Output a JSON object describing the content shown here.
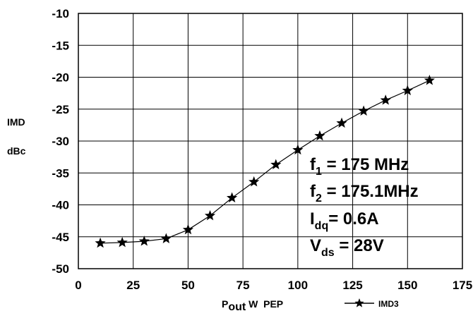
{
  "chart_data": {
    "type": "line",
    "ylabel_line1": "IMD",
    "ylabel_line2": "dBc",
    "xlabel": {
      "main": "P",
      "sub": "out",
      "rest": " W  PEP"
    },
    "xlim": [
      0,
      175
    ],
    "ylim": [
      -50,
      -10
    ],
    "x_ticks": [
      "0",
      "25",
      "50",
      "75",
      "100",
      "125",
      "150",
      "175"
    ],
    "y_ticks": [
      "-10",
      "-15",
      "-20",
      "-25",
      "-30",
      "-35",
      "-40",
      "-45",
      "-50"
    ],
    "grid": true,
    "legend_placement": "bottom-right",
    "series": [
      {
        "name": "IMD3",
        "marker": "star",
        "color": "#000000",
        "x": [
          10,
          20,
          30,
          40,
          50,
          60,
          70,
          80,
          90,
          100,
          110,
          120,
          130,
          140,
          150,
          160
        ],
        "y": [
          -46.0,
          -45.9,
          -45.7,
          -45.3,
          -43.9,
          -41.7,
          -38.9,
          -36.4,
          -33.7,
          -31.4,
          -29.2,
          -27.2,
          -25.3,
          -23.6,
          -22.1,
          -20.5
        ]
      }
    ],
    "annotations": [
      {
        "main": "f",
        "sub": "1",
        "rest": " = 175   MHz"
      },
      {
        "main": "f",
        "sub": "2",
        "rest": " = 175.1MHz"
      },
      {
        "main": "I",
        "sub": "dq",
        "rest": "= 0.6A"
      },
      {
        "main": "V",
        "sub": "ds",
        "rest": " = 28V"
      }
    ]
  }
}
